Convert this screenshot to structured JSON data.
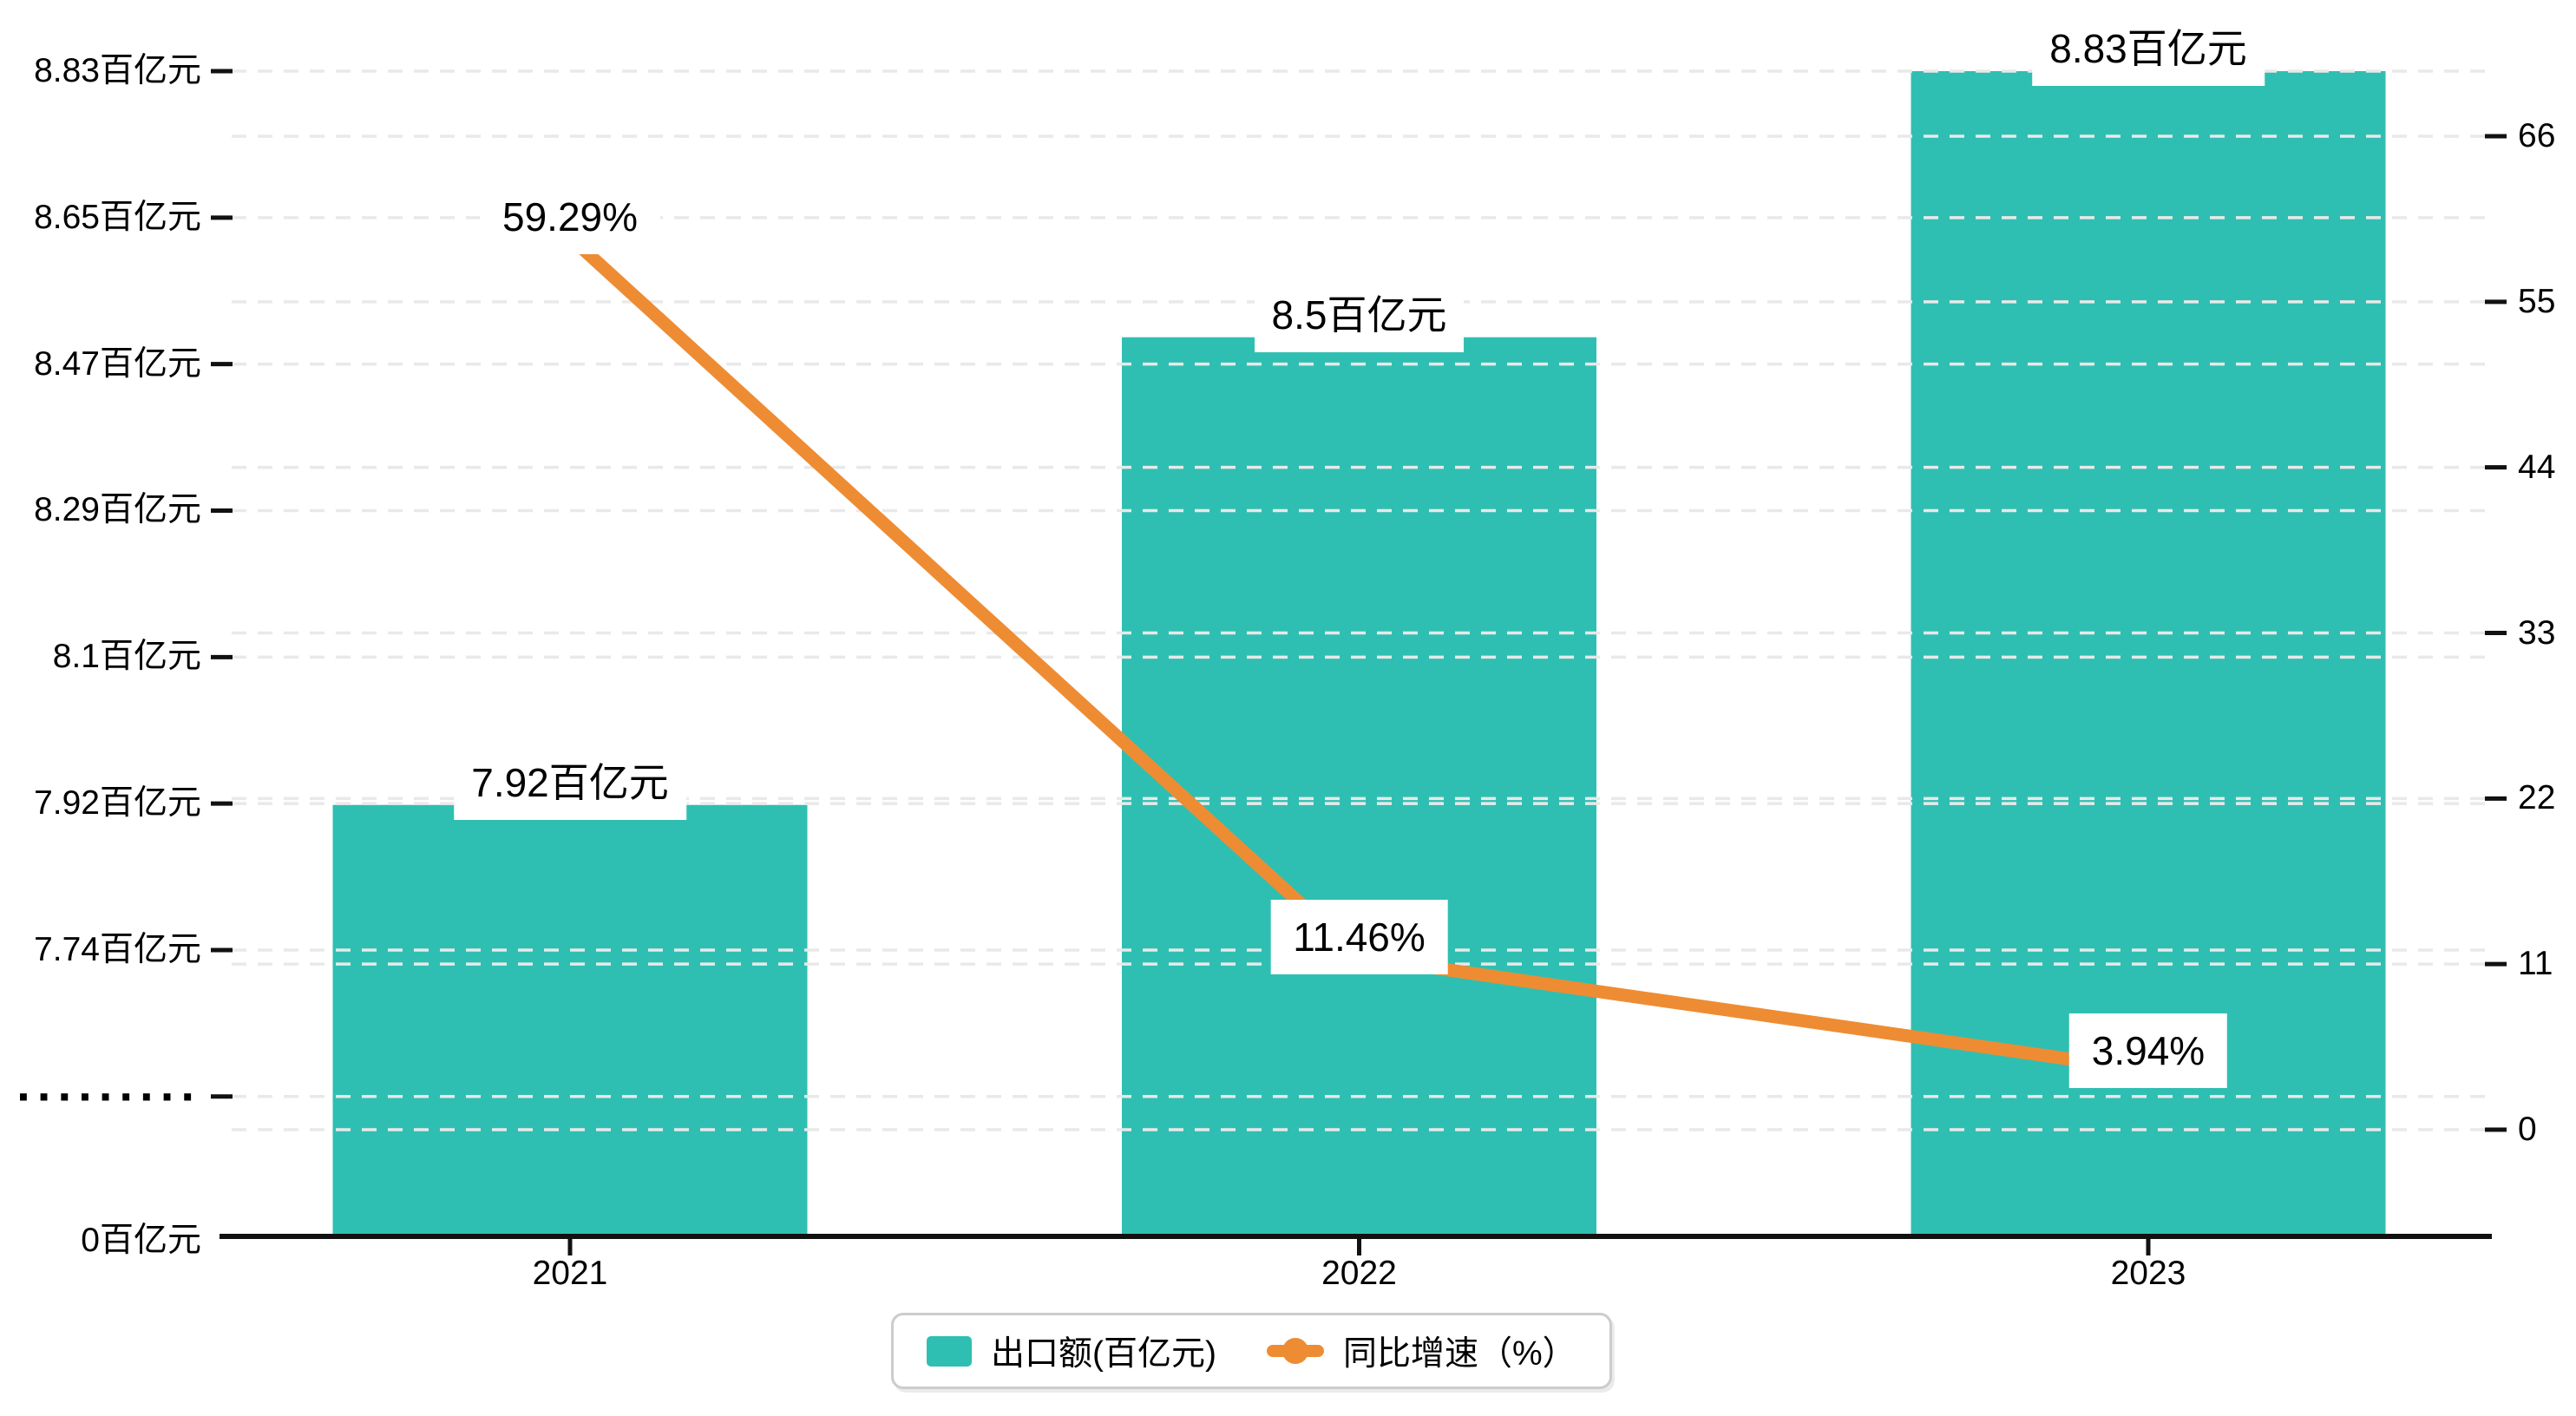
{
  "chart_data": {
    "type": "bar",
    "subtype": "bar+line combo, dual y-axis, broken left axis",
    "categories": [
      "2021",
      "2022",
      "2023"
    ],
    "series": [
      {
        "name": "出口额(百亿元)",
        "type": "bar",
        "values": [
          7.92,
          8.5,
          8.83
        ],
        "data_labels": [
          "7.92百亿元",
          "8.5百亿元",
          "8.83百亿元"
        ],
        "color": "#2fbfb2"
      },
      {
        "name": "同比增速（%）",
        "type": "line",
        "values": [
          59.29,
          11.46,
          3.94
        ],
        "data_labels": [
          "59.29%",
          "11.46%",
          "3.94%"
        ],
        "color": "#ee8c33"
      }
    ],
    "left_axis": {
      "unit": "百亿元",
      "tick_labels": [
        "8.83百亿元",
        "8.65百亿元",
        "8.47百亿元",
        "8.29百亿元",
        "8.1百亿元",
        "7.92百亿元",
        "7.74百亿元",
        "·········",
        "0百亿元"
      ],
      "tick_values": [
        8.83,
        8.65,
        8.47,
        8.29,
        8.1,
        7.92,
        7.74,
        null,
        0
      ],
      "has_axis_break": true,
      "value_range_shown": [
        7.74,
        8.83
      ]
    },
    "right_axis": {
      "unit": "%",
      "tick_labels": [
        "66",
        "55",
        "44",
        "33",
        "22",
        "11",
        "0"
      ],
      "tick_values": [
        66,
        55,
        44,
        33,
        22,
        11,
        0
      ],
      "range": [
        0,
        66
      ]
    },
    "grid": "horizontal dashed lines at both axes tick positions",
    "legend_position": "bottom-center",
    "legend": {
      "items": [
        {
          "label": "出口额(百亿元)",
          "marker": "bar-swatch"
        },
        {
          "label": "同比增速（%）",
          "marker": "line-with-dot"
        }
      ]
    }
  },
  "colors": {
    "bar": "#2fbfb2",
    "line": "#ee8c33",
    "grid": "#e9e9e9",
    "axis": "#111111",
    "text": "#000000",
    "label_bg": "#ffffff",
    "legend_border": "#cccccc"
  }
}
